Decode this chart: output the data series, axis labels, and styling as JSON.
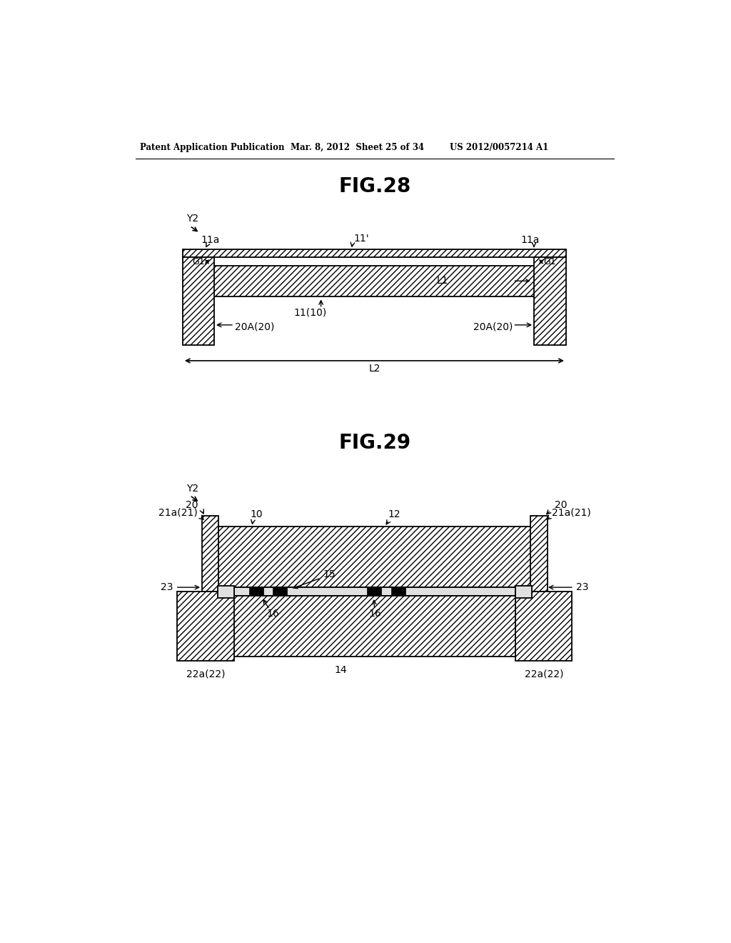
{
  "bg_color": "#ffffff",
  "text_color": "#000000",
  "header_left": "Patent Application Publication",
  "header_mid": "Mar. 8, 2012  Sheet 25 of 34",
  "header_right": "US 2012/0057214 A1",
  "fig28_title": "FIG.28",
  "fig29_title": "FIG.29",
  "hatch_pattern": "////",
  "line_color": "#000000",
  "lw": 1.3
}
